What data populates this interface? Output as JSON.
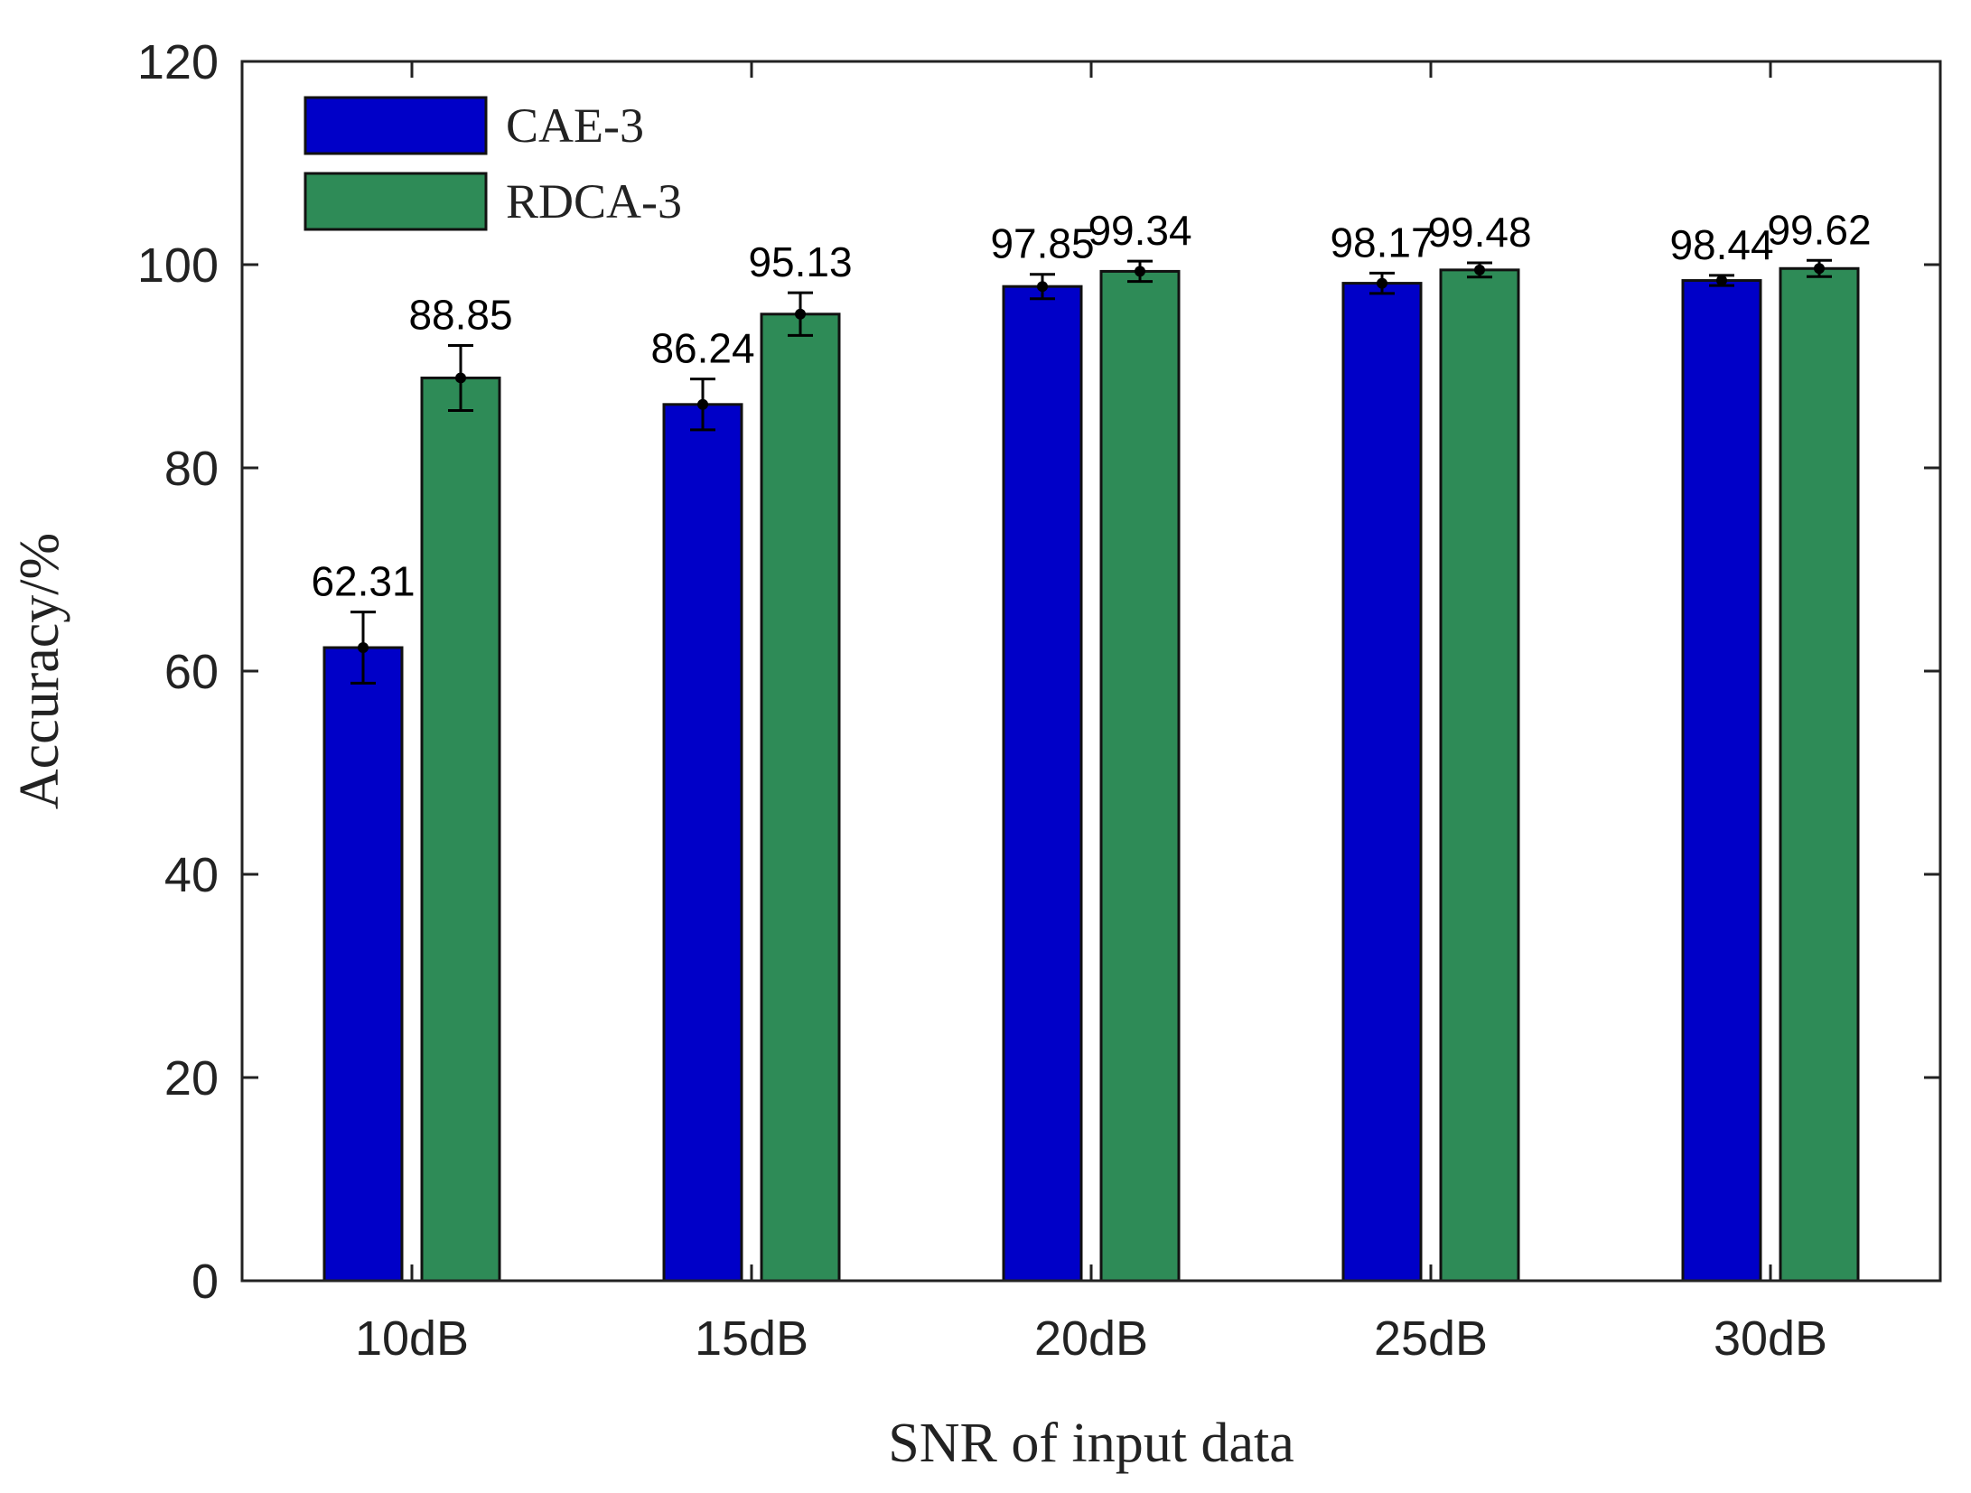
{
  "chart_data": {
    "type": "bar",
    "title": "",
    "xlabel": "SNR of input data",
    "ylabel": "Accuracy/%",
    "categories": [
      "10dB",
      "15dB",
      "20dB",
      "25dB",
      "30dB"
    ],
    "ylim": [
      0,
      120
    ],
    "yticks": [
      0,
      20,
      40,
      60,
      80,
      100,
      120
    ],
    "legend_position": "top-left",
    "grid": false,
    "series": [
      {
        "name": "CAE-3",
        "color": "#0000c8",
        "values": [
          62.31,
          86.24,
          97.85,
          98.17,
          98.44
        ],
        "labels": [
          "62.31",
          "86.24",
          "97.85",
          "98.17",
          "98.44"
        ],
        "errors": [
          3.5,
          2.5,
          1.2,
          1.0,
          0.5
        ]
      },
      {
        "name": "RDCA-3",
        "color": "#2e8b57",
        "values": [
          88.85,
          95.13,
          99.34,
          99.48,
          99.62
        ],
        "labels": [
          "88.85",
          "95.13",
          "99.34",
          "99.48",
          "99.62"
        ],
        "errors": [
          3.2,
          2.1,
          1.0,
          0.7,
          0.8
        ]
      }
    ]
  }
}
